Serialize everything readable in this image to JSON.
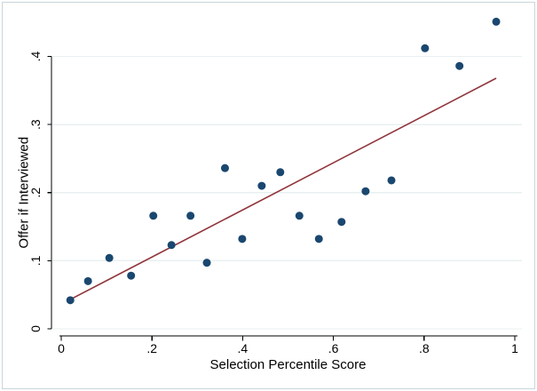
{
  "figure": {
    "background": "#ffffff",
    "border_color": "#c9d6da"
  },
  "chart_data": {
    "type": "scatter",
    "title": "",
    "xlabel": "Selection Percentile Score",
    "ylabel": "Offer if Interviewed",
    "xlim": [
      0,
      1
    ],
    "ylim": [
      0,
      0.4
    ],
    "grid": "horizontal-y",
    "legend": "none",
    "x_ticks": {
      "values": [
        0,
        0.2,
        0.4,
        0.6,
        0.8,
        1
      ],
      "labels": [
        "0",
        ".2",
        ".4",
        ".6",
        ".8",
        "1"
      ]
    },
    "y_ticks": {
      "values": [
        0,
        0.1,
        0.2,
        0.3,
        0.4
      ],
      "labels": [
        "0",
        ".1",
        ".2",
        ".3",
        ".4"
      ]
    },
    "colors": {
      "marker": "#1a476f",
      "fit_line": "#90353b",
      "grid": "#e8f0f1",
      "axis": "#000000"
    },
    "series": [
      {
        "name": "binned-scatter",
        "type": "scatter",
        "color": "#1a476f",
        "points": [
          [
            0.02,
            0.042
          ],
          [
            0.059,
            0.07
          ],
          [
            0.106,
            0.104
          ],
          [
            0.154,
            0.078
          ],
          [
            0.203,
            0.166
          ],
          [
            0.243,
            0.123
          ],
          [
            0.285,
            0.166
          ],
          [
            0.321,
            0.097
          ],
          [
            0.361,
            0.236
          ],
          [
            0.399,
            0.132
          ],
          [
            0.442,
            0.21
          ],
          [
            0.483,
            0.23
          ],
          [
            0.525,
            0.166
          ],
          [
            0.568,
            0.132
          ],
          [
            0.618,
            0.157
          ],
          [
            0.671,
            0.202
          ],
          [
            0.728,
            0.218
          ],
          [
            0.802,
            0.412
          ],
          [
            0.878,
            0.386
          ],
          [
            0.959,
            0.451
          ]
        ]
      },
      {
        "name": "linear-fit",
        "type": "line",
        "color": "#90353b",
        "points": [
          [
            0.014,
            0.041
          ],
          [
            0.959,
            0.368
          ]
        ]
      }
    ]
  }
}
